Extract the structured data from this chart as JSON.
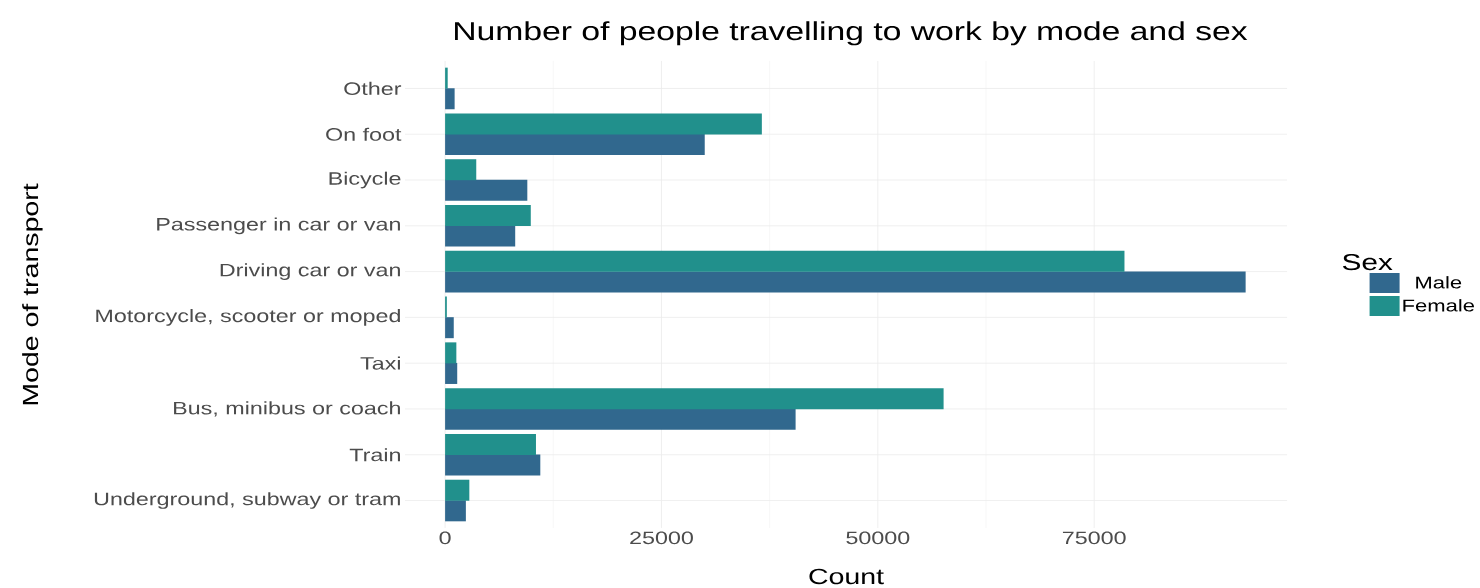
{
  "chart_data": {
    "type": "bar",
    "orientation": "horizontal",
    "title": "Number of people travelling to work by mode and sex",
    "xlabel": "Count",
    "ylabel": "Mode of transport",
    "legend_title": "Sex",
    "categories": [
      "Other",
      "On foot",
      "Bicycle",
      "Passenger in car or van",
      "Driving car or van",
      "Motorcycle, scooter or moped",
      "Taxi",
      "Bus, minibus or coach",
      "Train",
      "Underground, subway or tram"
    ],
    "series": [
      {
        "name": "Male",
        "color": "#31688e",
        "values": [
          1100,
          30000,
          9500,
          8100,
          92500,
          1000,
          1400,
          40500,
          11000,
          2400
        ]
      },
      {
        "name": "Female",
        "color": "#21908c",
        "values": [
          300,
          36600,
          3600,
          9900,
          78500,
          200,
          1300,
          57600,
          10500,
          2800
        ]
      }
    ],
    "xlim": [
      -4632,
      97282
    ],
    "xticks": [
      0,
      25000,
      50000,
      75000
    ],
    "grid": true,
    "legend": "right"
  }
}
